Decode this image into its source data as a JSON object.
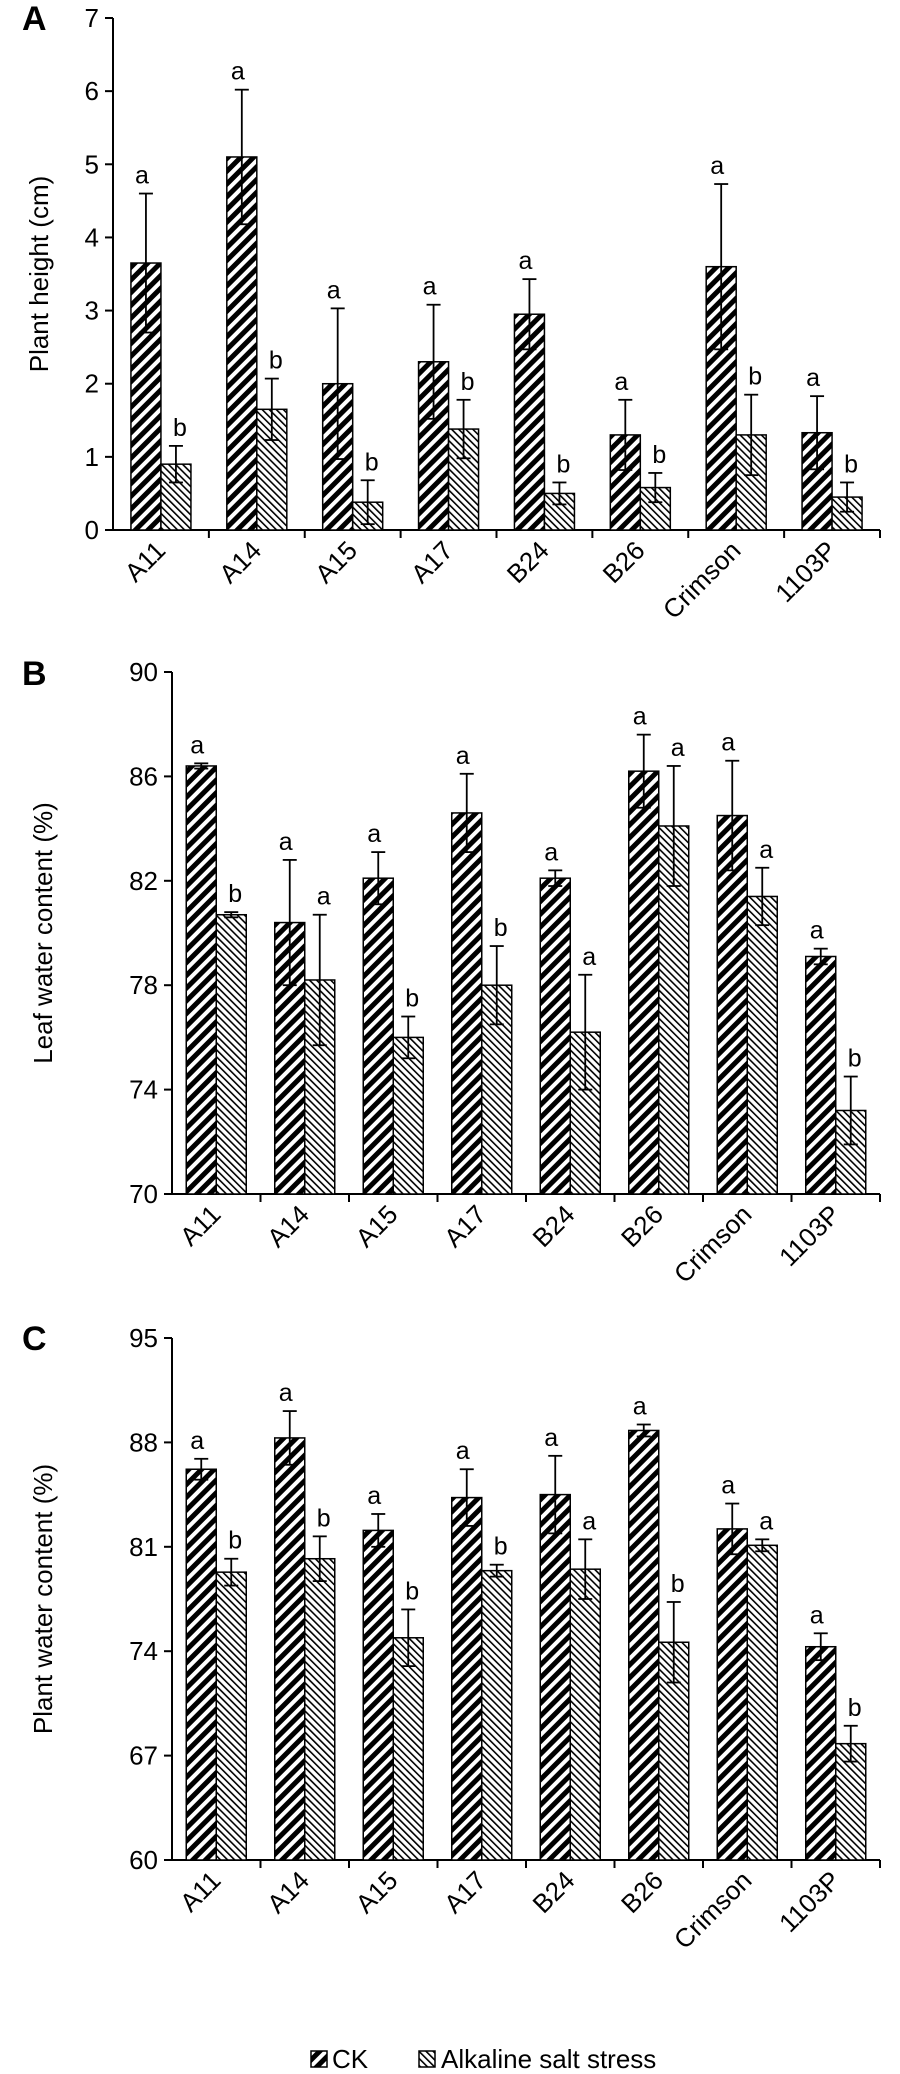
{
  "legend": {
    "ck": "CK",
    "salt": "Alkaline salt stress"
  },
  "chart_data": [
    {
      "type": "bar",
      "panel": "A",
      "ylabel": "Plant height (cm)",
      "ylim": [
        0,
        7
      ],
      "yticks": [
        "0",
        "1",
        "2",
        "3",
        "4",
        "5",
        "6",
        "7"
      ],
      "categories": [
        "A11",
        "A14",
        "A15",
        "A17",
        "B24",
        "B26",
        "Crimson",
        "1103P"
      ],
      "series": [
        {
          "name": "CK",
          "values": [
            3.65,
            5.1,
            2.0,
            2.3,
            2.95,
            1.3,
            3.6,
            1.33
          ],
          "errors": [
            0.95,
            0.92,
            1.03,
            0.78,
            0.48,
            0.48,
            1.13,
            0.5
          ],
          "letters": [
            "a",
            "a",
            "a",
            "a",
            "a",
            "a",
            "a",
            "a"
          ]
        },
        {
          "name": "Alkaline salt stress",
          "values": [
            0.9,
            1.65,
            0.38,
            1.38,
            0.5,
            0.58,
            1.3,
            0.45
          ],
          "errors": [
            0.25,
            0.42,
            0.3,
            0.4,
            0.15,
            0.2,
            0.55,
            0.2
          ],
          "letters": [
            "b",
            "b",
            "b",
            "b",
            "b",
            "b",
            "b",
            "b"
          ]
        }
      ]
    },
    {
      "type": "bar",
      "panel": "B",
      "ylabel": "Leaf water content (%)",
      "ylim": [
        70,
        90
      ],
      "yticks": [
        "70",
        "74",
        "78",
        "82",
        "86",
        "90"
      ],
      "categories": [
        "A11",
        "A14",
        "A15",
        "A17",
        "B24",
        "B26",
        "Crimson",
        "1103P"
      ],
      "series": [
        {
          "name": "CK",
          "values": [
            86.4,
            80.4,
            82.1,
            84.6,
            82.1,
            86.2,
            84.5,
            79.1
          ],
          "errors": [
            0.1,
            2.4,
            1.0,
            1.5,
            0.3,
            1.4,
            2.1,
            0.3
          ],
          "letters": [
            "a",
            "a",
            "a",
            "a",
            "a",
            "a",
            "a",
            "a"
          ]
        },
        {
          "name": "Alkaline salt stress",
          "values": [
            80.7,
            78.2,
            76.0,
            78.0,
            76.2,
            84.1,
            81.4,
            73.2
          ],
          "errors": [
            0.1,
            2.5,
            0.8,
            1.5,
            2.2,
            2.3,
            1.1,
            1.3
          ],
          "letters": [
            "b",
            "a",
            "b",
            "b",
            "a",
            "a",
            "a",
            "b"
          ]
        }
      ]
    },
    {
      "type": "bar",
      "panel": "C",
      "ylabel": "Plant water content (%)",
      "ylim": [
        60,
        95
      ],
      "yticks": [
        "60",
        "67",
        "74",
        "81",
        "88",
        "95"
      ],
      "categories": [
        "A11",
        "A14",
        "A15",
        "A17",
        "B24",
        "B26",
        "Crimson",
        "1103P"
      ],
      "series": [
        {
          "name": "CK",
          "values": [
            86.2,
            88.3,
            82.1,
            84.3,
            84.5,
            88.8,
            82.2,
            74.3
          ],
          "errors": [
            0.7,
            1.8,
            1.1,
            1.9,
            2.6,
            0.4,
            1.7,
            0.9
          ],
          "letters": [
            "a",
            "a",
            "a",
            "a",
            "a",
            "a",
            "a",
            "a"
          ]
        },
        {
          "name": "Alkaline salt stress",
          "values": [
            79.3,
            80.2,
            74.9,
            79.4,
            79.5,
            74.6,
            81.1,
            67.8
          ],
          "errors": [
            0.9,
            1.5,
            1.9,
            0.4,
            2.0,
            2.7,
            0.4,
            1.2
          ],
          "letters": [
            "b",
            "b",
            "b",
            "b",
            "a",
            "b",
            "a",
            "b"
          ]
        }
      ]
    }
  ]
}
